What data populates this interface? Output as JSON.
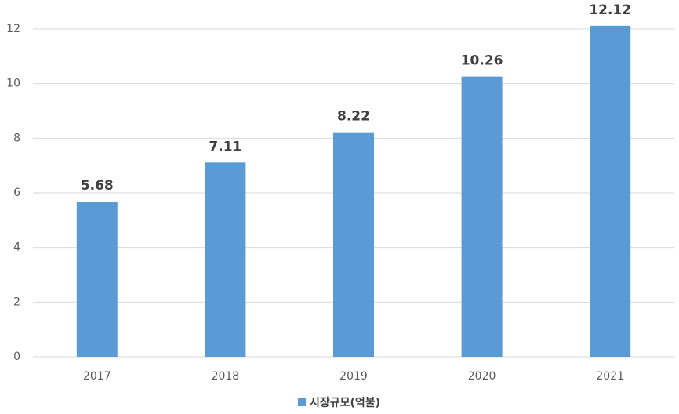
{
  "chart_data": {
    "type": "bar",
    "categories": [
      "2017",
      "2018",
      "2019",
      "2020",
      "2021"
    ],
    "series": [
      {
        "name": "시장규모(억불)",
        "color": "#5b9bd5",
        "values": [
          5.68,
          7.11,
          8.22,
          10.26,
          12.12
        ]
      }
    ],
    "ylim": [
      0,
      12
    ],
    "yticks": [
      0,
      2,
      4,
      6,
      8,
      10,
      12
    ],
    "grid": true,
    "legend": "bottom"
  }
}
